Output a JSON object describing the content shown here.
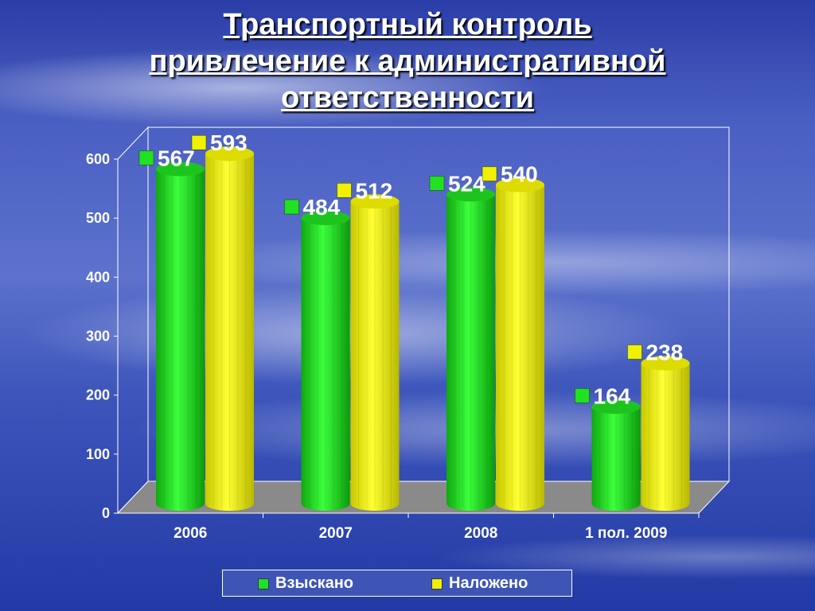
{
  "title": {
    "line1": "Транспортный контроль",
    "line2": "привлечение к административной",
    "line3": "ответственности"
  },
  "legend": {
    "item1": "Взыскано",
    "item2": "Наложено"
  },
  "colors": {
    "green": "#22e022",
    "yellow": "#f0f000"
  },
  "chart_data": {
    "type": "bar",
    "categories": [
      "2006",
      "2007",
      "2008",
      "1 пол. 2009"
    ],
    "series": [
      {
        "name": "Взыскано",
        "values": [
          567,
          484,
          524,
          164
        ]
      },
      {
        "name": "Наложено",
        "values": [
          593,
          512,
          540,
          238
        ]
      }
    ],
    "yticks": [
      "0",
      "100",
      "200",
      "300",
      "400",
      "500",
      "600"
    ],
    "ylim": [
      0,
      600
    ],
    "legend": "bottom",
    "grid": false
  }
}
